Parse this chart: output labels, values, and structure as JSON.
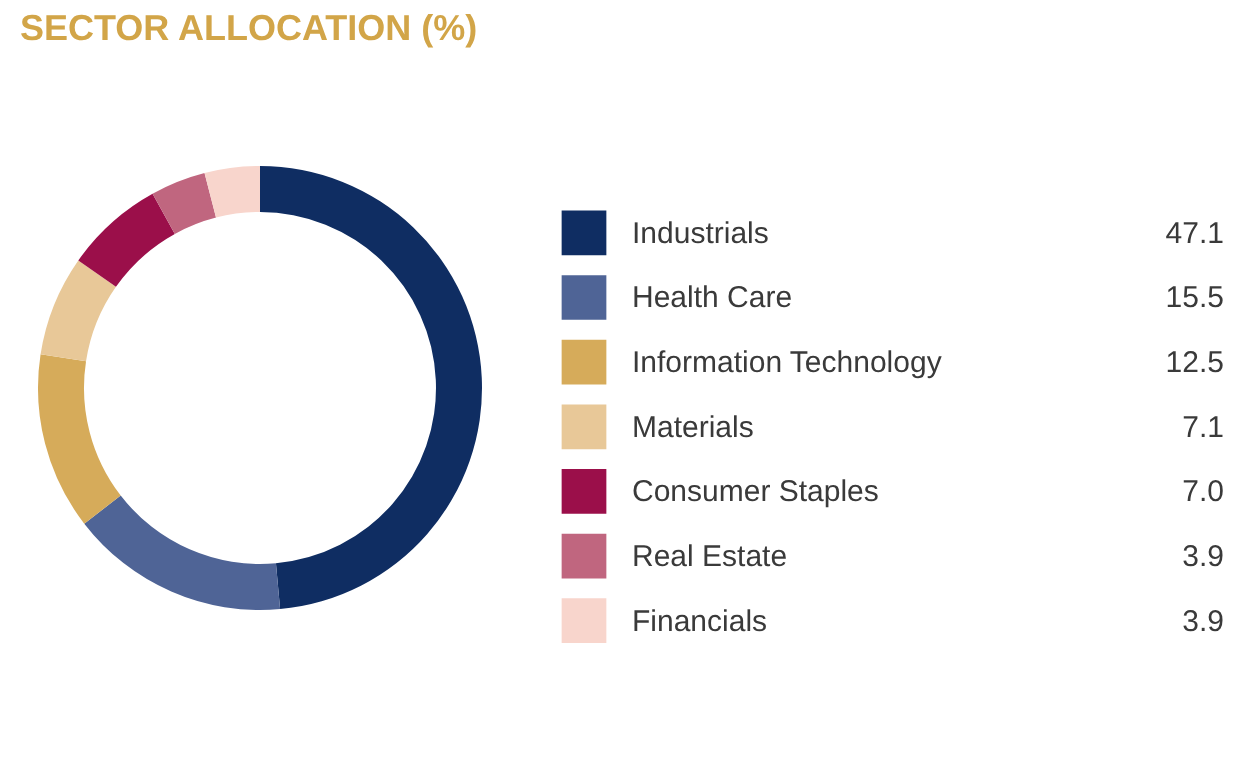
{
  "chart_data": {
    "type": "donut",
    "title": "SECTOR ALLOCATION (%)",
    "categories": [
      "Industrials",
      "Health Care",
      "Information Technology",
      "Materials",
      "Consumer Staples",
      "Real Estate",
      "Financials"
    ],
    "values": [
      47.1,
      15.5,
      12.5,
      7.1,
      7.0,
      3.9,
      3.9
    ],
    "colors": [
      "#0f2d62",
      "#4f6496",
      "#d6ab5a",
      "#e8c898",
      "#9b0f4a",
      "#c0667f",
      "#f8d5cc"
    ],
    "value_labels": [
      "47.1",
      "15.5",
      "12.5",
      "7.1",
      "7.0",
      "3.9",
      "3.9"
    ],
    "legend": "right"
  }
}
